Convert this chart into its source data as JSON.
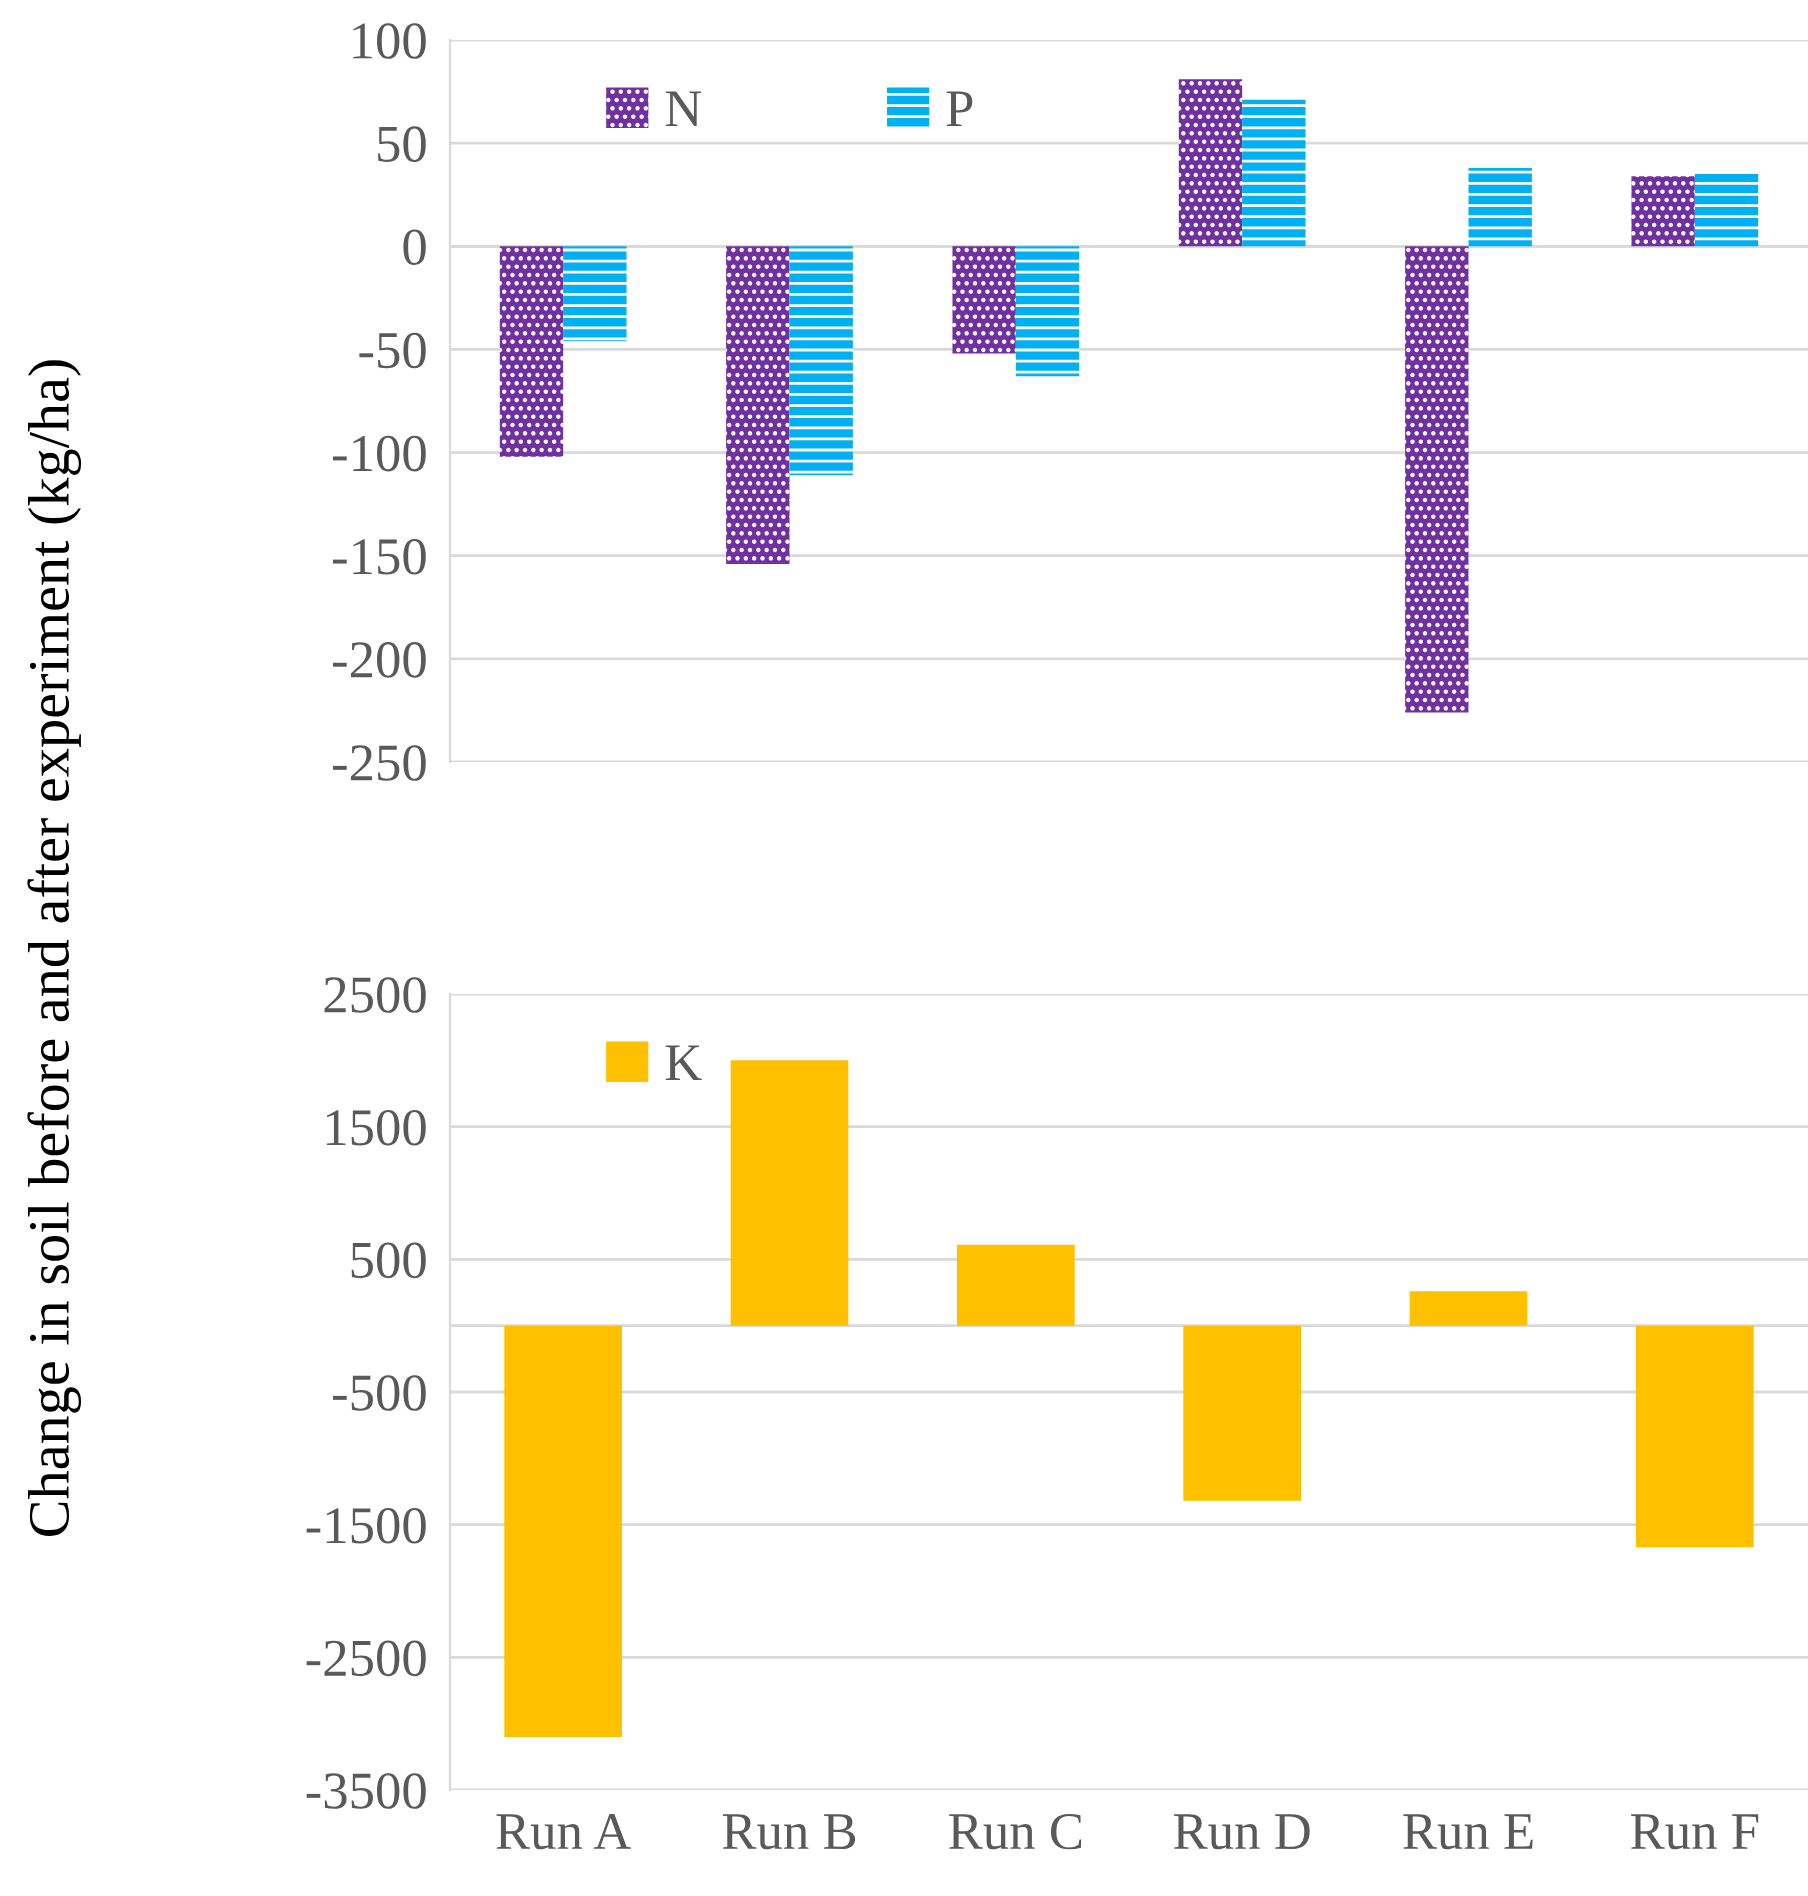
{
  "chart_data": [
    {
      "type": "bar",
      "ylabel": "Change in soil before and after experiment (kg/ha)",
      "series": [
        {
          "name": "N",
          "color": "#7030a0",
          "values": [
            -102,
            -154,
            -52,
            81,
            -226,
            34
          ]
        },
        {
          "name": "P",
          "color": "#00b0f0",
          "values": [
            -46,
            -111,
            -63,
            71,
            38,
            35
          ]
        }
      ],
      "ylim": [
        -250,
        100
      ],
      "yticks": [
        -250,
        -200,
        -150,
        -100,
        -50,
        0,
        50,
        100
      ],
      "grid": "y",
      "legend": "top left",
      "tick_labels": "y"
    },
    {
      "type": "bar",
      "categories": [
        "Run A",
        "Run B",
        "Run C",
        "Run D",
        "Run E",
        "Run F"
      ],
      "series": [
        {
          "name": "K",
          "color": "#ffc000",
          "values": [
            -3100,
            2000,
            610,
            -1320,
            260,
            -1670
          ]
        }
      ],
      "ylim": [
        -3500,
        2500
      ],
      "yticks": [
        -3500,
        -2500,
        -1500,
        -500,
        500,
        1500,
        2500
      ],
      "grid": "y",
      "legend": "top left"
    }
  ]
}
